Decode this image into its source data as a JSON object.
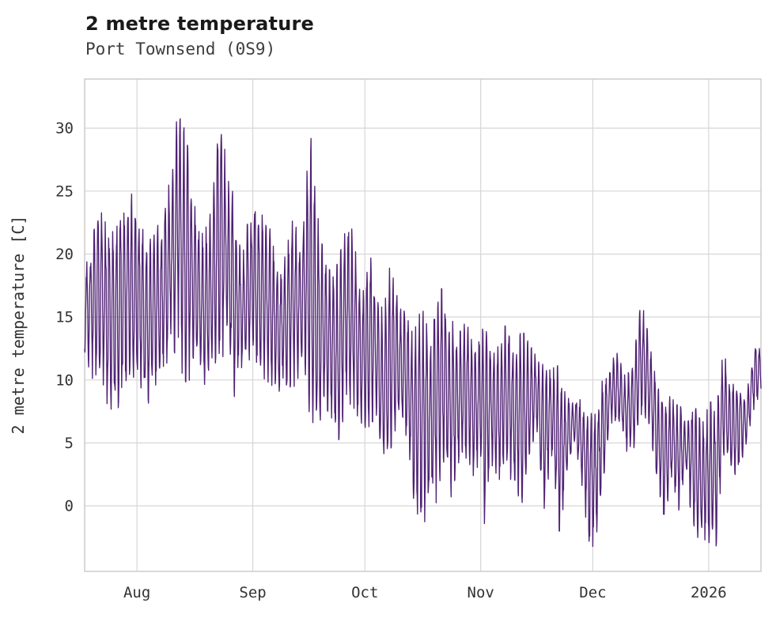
{
  "header": {
    "title": "2 metre temperature",
    "subtitle": "Port Townsend (0S9)"
  },
  "chart_data": {
    "type": "line",
    "title": "2 metre temperature",
    "subtitle": "Port Townsend (0S9)",
    "series_name": "2 metre temperature",
    "unit": "C",
    "line_color": "#4f2173",
    "grid_color": "#d6d6d6",
    "spine_color": "#cccccc",
    "background": "#ffffff",
    "grid": "on",
    "legend": "none",
    "y_axis": {
      "label": "2 metre temperature [C]",
      "ticks": [
        0,
        5,
        10,
        15,
        20,
        25,
        30
      ],
      "range": [
        -5.2,
        33.9
      ]
    },
    "x_axis": {
      "label": "",
      "tick_labels": [
        "Aug",
        "Sep",
        "Oct",
        "Nov",
        "Dec",
        "2026"
      ],
      "tick_days": [
        14,
        45,
        75,
        106,
        136,
        167
      ],
      "range_days": [
        0,
        181
      ],
      "start_date_note": "data begins mid-July, ends mid-January 2026"
    },
    "sampling": "hourly",
    "seed": 7,
    "envelope_day_lo_hi": [
      [
        0,
        11.5,
        19.5
      ],
      [
        2,
        10.5,
        21
      ],
      [
        4,
        11,
        23
      ],
      [
        6,
        8,
        22.5
      ],
      [
        8,
        7.8,
        22
      ],
      [
        11,
        9,
        25
      ],
      [
        13,
        10,
        24.2
      ],
      [
        15,
        9.5,
        22
      ],
      [
        17,
        8.5,
        20.5
      ],
      [
        19,
        10,
        21.5
      ],
      [
        21,
        11,
        22.8
      ],
      [
        23,
        12,
        27
      ],
      [
        25,
        13,
        32
      ],
      [
        26,
        11,
        30.5
      ],
      [
        28,
        9.6,
        27.5
      ],
      [
        30,
        12,
        22
      ],
      [
        32,
        10,
        21
      ],
      [
        34,
        11,
        24
      ],
      [
        36,
        12.5,
        29.8
      ],
      [
        38,
        12,
        28.7
      ],
      [
        40,
        9,
        23.5
      ],
      [
        42,
        11,
        20
      ],
      [
        44,
        12,
        22.5
      ],
      [
        46,
        11.5,
        24.8
      ],
      [
        48,
        10.5,
        22
      ],
      [
        50,
        10,
        21.5
      ],
      [
        52,
        8.5,
        19
      ],
      [
        54,
        10,
        20
      ],
      [
        56,
        9.5,
        22.8
      ],
      [
        58,
        11,
        20
      ],
      [
        60,
        8,
        31
      ],
      [
        62,
        5.1,
        23.4
      ],
      [
        64,
        9,
        19.5
      ],
      [
        66,
        7,
        18
      ],
      [
        68,
        4.8,
        19
      ],
      [
        70,
        9,
        22.3
      ],
      [
        72,
        8,
        21.8
      ],
      [
        74,
        7,
        15.5
      ],
      [
        76,
        6,
        19.6
      ],
      [
        78,
        6.5,
        18.5
      ],
      [
        80,
        3,
        15
      ],
      [
        82,
        5,
        19.4
      ],
      [
        84,
        7.5,
        15.5
      ],
      [
        86,
        6,
        15.3
      ],
      [
        88,
        1,
        13
      ],
      [
        90,
        -1.5,
        15.8
      ],
      [
        92,
        -0.5,
        14
      ],
      [
        94,
        0.5,
        17
      ],
      [
        96,
        4,
        16.8
      ],
      [
        98,
        1,
        14.5
      ],
      [
        100,
        3.8,
        13.5
      ],
      [
        102,
        4.2,
        14.8
      ],
      [
        104,
        2.8,
        12.8
      ],
      [
        106,
        4,
        13
      ],
      [
        107,
        -1,
        14.5
      ],
      [
        109,
        3.5,
        12.5
      ],
      [
        111,
        2.5,
        12.3
      ],
      [
        113,
        3,
        14.8
      ],
      [
        115,
        2,
        12.5
      ],
      [
        117,
        0.5,
        13.5
      ],
      [
        119,
        4.5,
        12.8
      ],
      [
        121,
        6.5,
        11.5
      ],
      [
        123,
        0.2,
        11
      ],
      [
        125,
        4,
        10.5
      ],
      [
        127,
        -1.8,
        10.8
      ],
      [
        129,
        2,
        8.5
      ],
      [
        131,
        5.5,
        8.3
      ],
      [
        133,
        2,
        8.5
      ],
      [
        135,
        -3.2,
        7.5
      ],
      [
        137,
        -2.5,
        8.2
      ],
      [
        139,
        2.5,
        10.5
      ],
      [
        141,
        7,
        11.5
      ],
      [
        143,
        6.5,
        11.8
      ],
      [
        145,
        4.5,
        10.2
      ],
      [
        147,
        5,
        11.3
      ],
      [
        149,
        7.5,
        16.4
      ],
      [
        151,
        6.8,
        12.8
      ],
      [
        153,
        2.5,
        9.5
      ],
      [
        155,
        -1.5,
        8.5
      ],
      [
        157,
        2.5,
        8.3
      ],
      [
        159,
        -0.5,
        8.2
      ],
      [
        161,
        3,
        6.5
      ],
      [
        163,
        -2,
        7.8
      ],
      [
        165,
        -2.2,
        6.2
      ],
      [
        167,
        -2.5,
        7.8
      ],
      [
        169,
        -2.8,
        8
      ],
      [
        171,
        4.5,
        12
      ],
      [
        173,
        3,
        9.5
      ],
      [
        175,
        2.8,
        9.8
      ],
      [
        177,
        4.8,
        8.5
      ],
      [
        179,
        8,
        12.2
      ],
      [
        180,
        8.5,
        13.1
      ],
      [
        181,
        9.5,
        12
      ]
    ]
  },
  "layout_note": "single line chart panel"
}
